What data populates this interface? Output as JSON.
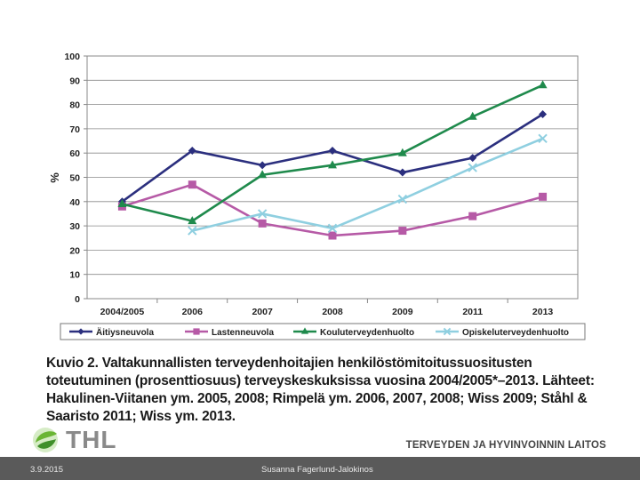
{
  "chart_data": {
    "type": "line",
    "ylabel": "%",
    "ylim": [
      0,
      100
    ],
    "yticks": [
      0,
      10,
      20,
      30,
      40,
      50,
      60,
      70,
      80,
      90,
      100
    ],
    "categories": [
      "2004/2005",
      "2006",
      "2007",
      "2008",
      "2009",
      "2011",
      "2013"
    ],
    "grid": true,
    "legend_position": "bottom",
    "series": [
      {
        "name": "Äitiysneuvola",
        "color": "#2b2f7e",
        "marker": "diamond",
        "values": [
          40,
          61,
          55,
          61,
          52,
          58,
          76
        ]
      },
      {
        "name": "Lastenneuvola",
        "color": "#b65aa6",
        "marker": "square",
        "values": [
          38,
          47,
          31,
          26,
          28,
          34,
          42
        ]
      },
      {
        "name": "Kouluterveydenhuolto",
        "color": "#1f8a4c",
        "marker": "triangle",
        "values": [
          39,
          32,
          51,
          55,
          60,
          75,
          88
        ]
      },
      {
        "name": "Opiskeluterveydenhuolto",
        "color": "#8fcfe0",
        "marker": "x",
        "values": [
          null,
          28,
          35,
          29,
          41,
          54,
          66
        ]
      }
    ]
  },
  "caption": "Kuvio 2. Valtakunnallisten terveydenhoitajien henkilöstömitoitussuositusten toteutuminen (prosenttiosuus) terveyskeskuksissa vuosina 2004/2005*–2013. Lähteet: Hakulinen-Viitanen ym. 2005, 2008; Rimpelä ym. 2006, 2007, 2008; Wiss 2009; Ståhl & Saaristo 2011; Wiss ym. 2013.",
  "logo_text": "THL",
  "org_name": "TERVEYDEN JA HYVINVOINNIN LAITOS",
  "footer": {
    "date": "3.9.2015",
    "author": "Susanna Fagerlund-Jalokinos"
  },
  "colors": {
    "footer_bg": "#5a5a5a",
    "logo_green": "#6ab534"
  }
}
